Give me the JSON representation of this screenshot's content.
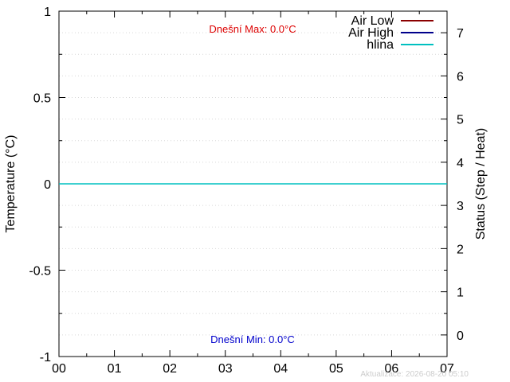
{
  "chart_data": {
    "type": "line",
    "x_ticks": [
      "00",
      "01",
      "02",
      "03",
      "04",
      "05",
      "06",
      "07"
    ],
    "xlim": [
      0,
      7
    ],
    "ylim": [
      -1,
      1
    ],
    "y_ticks": [
      "1",
      "0.5",
      "0",
      "-0.5",
      "-1"
    ],
    "y_tick_values": [
      1,
      0.5,
      0,
      -0.5,
      -1
    ],
    "y2lim": [
      -0.5,
      7.5
    ],
    "y2_ticks": [
      "7",
      "6",
      "5",
      "4",
      "3",
      "2",
      "1",
      "0"
    ],
    "y2_tick_values": [
      7,
      6,
      5,
      4,
      3,
      2,
      1,
      0
    ],
    "ylabel": "Temperature (°C)",
    "y2label": "Status (Step / Heat)",
    "grid": true,
    "legend_position": "top-right",
    "series": [
      {
        "name": "Air Low",
        "color": "#8b0000",
        "x": [],
        "y": []
      },
      {
        "name": "Air High",
        "color": "#00008b",
        "x": [],
        "y": []
      },
      {
        "name": "hlina",
        "color": "#00c0c0",
        "x": [
          0,
          7
        ],
        "y": [
          0,
          0
        ]
      }
    ],
    "annotations": {
      "max_label": "Dnešní Max: 0.0°C",
      "max_color": "#dd0000",
      "min_label": "Dnešní Min: 0.0°C",
      "min_color": "#0000cc"
    },
    "footer": "Aktualizace: 2026-08-20 05:10"
  }
}
